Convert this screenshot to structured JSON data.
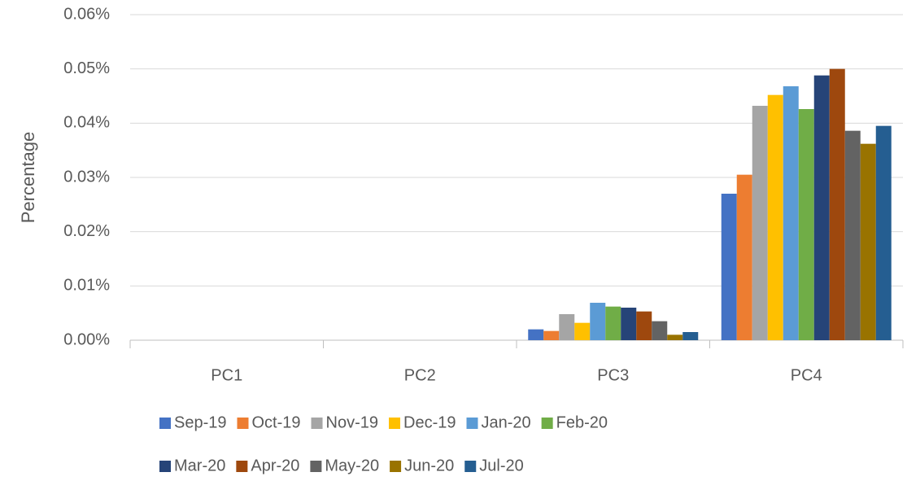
{
  "chart_data": {
    "type": "bar",
    "y_label": "Percentage",
    "categories": [
      "PC1",
      "PC2",
      "PC3",
      "PC4"
    ],
    "series": [
      {
        "name": "Sep-19",
        "color": "#4472C4",
        "values": [
          0,
          0,
          0.002,
          0.027
        ]
      },
      {
        "name": "Oct-19",
        "color": "#ED7D31",
        "values": [
          0,
          0,
          0.0017,
          0.0305
        ]
      },
      {
        "name": "Nov-19",
        "color": "#A5A5A5",
        "values": [
          0,
          0,
          0.0048,
          0.0432
        ]
      },
      {
        "name": "Dec-19",
        "color": "#FFC000",
        "values": [
          0,
          0,
          0.0032,
          0.0452
        ]
      },
      {
        "name": "Jan-20",
        "color": "#5B9BD5",
        "values": [
          0,
          0,
          0.0069,
          0.0468
        ]
      },
      {
        "name": "Feb-20",
        "color": "#70AD47",
        "values": [
          0,
          0,
          0.0062,
          0.0426
        ]
      },
      {
        "name": "Mar-20",
        "color": "#264478",
        "values": [
          0,
          0,
          0.006,
          0.0488
        ]
      },
      {
        "name": "Apr-20",
        "color": "#9E480E",
        "values": [
          0,
          0,
          0.0053,
          0.05
        ]
      },
      {
        "name": "May-20",
        "color": "#636363",
        "values": [
          0,
          0,
          0.0035,
          0.0386
        ]
      },
      {
        "name": "Jun-20",
        "color": "#997300",
        "values": [
          0,
          0,
          0.001,
          0.0362
        ]
      },
      {
        "name": "Jul-20",
        "color": "#255E91",
        "values": [
          0,
          0,
          0.0015,
          0.0395
        ]
      }
    ],
    "ylim": [
      0,
      0.06
    ],
    "yticks": [
      {
        "value": 0,
        "label": "0.00%"
      },
      {
        "value": 0.01,
        "label": "0.01%"
      },
      {
        "value": 0.02,
        "label": "0.02%"
      },
      {
        "value": 0.03,
        "label": "0.03%"
      },
      {
        "value": 0.04,
        "label": "0.04%"
      },
      {
        "value": 0.05,
        "label": "0.05%"
      },
      {
        "value": 0.06,
        "label": "0.06%"
      }
    ],
    "grid": true,
    "legend": "bottom"
  }
}
